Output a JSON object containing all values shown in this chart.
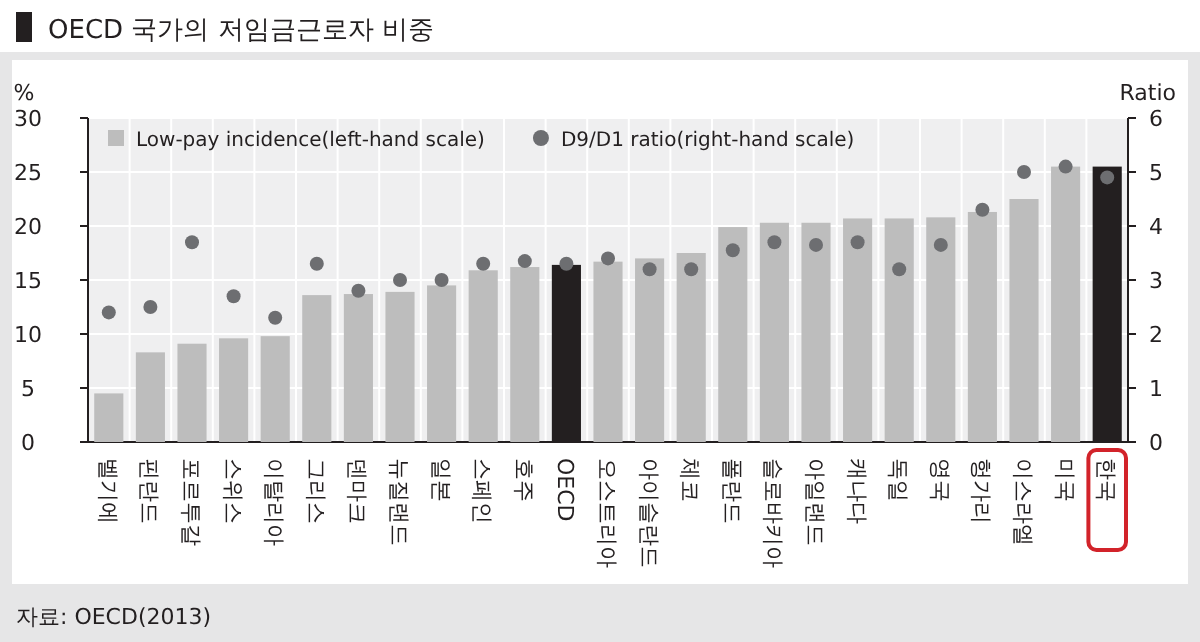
{
  "chart_data": {
    "type": "bar",
    "title": "OECD 국가의 저임금근로자 비중",
    "ylabel": "%",
    "y2label": "Ratio",
    "categories": [
      "벨기에",
      "핀란드",
      "포르투갈",
      "스위스",
      "이탈리아",
      "그리스",
      "덴마크",
      "뉴질랜드",
      "일본",
      "스페인",
      "호주",
      "OECD",
      "오스트리아",
      "아이슬란드",
      "체코",
      "폴란드",
      "슬로바키아",
      "아일랜드",
      "캐나다",
      "독일",
      "영국",
      "헝가리",
      "이스라엘",
      "미국",
      "한국"
    ],
    "series": [
      {
        "name": "Low-pay incidence(left-hand scale)",
        "color": "#bdbdbd",
        "colors": [
          "#bdbdbd",
          "#bdbdbd",
          "#bdbdbd",
          "#bdbdbd",
          "#bdbdbd",
          "#bdbdbd",
          "#bdbdbd",
          "#bdbdbd",
          "#bdbdbd",
          "#bdbdbd",
          "#bdbdbd",
          "#231f20",
          "#bdbdbd",
          "#bdbdbd",
          "#bdbdbd",
          "#bdbdbd",
          "#bdbdbd",
          "#bdbdbd",
          "#bdbdbd",
          "#bdbdbd",
          "#bdbdbd",
          "#bdbdbd",
          "#bdbdbd",
          "#bdbdbd",
          "#231f20"
        ],
        "values": [
          4.5,
          8.3,
          9.1,
          9.6,
          9.8,
          13.6,
          13.7,
          13.9,
          14.5,
          15.9,
          16.2,
          16.4,
          16.7,
          17.0,
          17.5,
          19.9,
          20.3,
          20.3,
          20.7,
          20.7,
          20.8,
          21.3,
          22.5,
          25.5,
          25.5
        ]
      },
      {
        "name": "D9/D1 ratio(right-hand scale)",
        "type": "scatter",
        "axis": "y2",
        "marker": "circle",
        "color": "#6d6e71",
        "values": [
          2.4,
          2.5,
          3.7,
          2.7,
          2.3,
          3.3,
          2.8,
          3.0,
          3.0,
          3.3,
          3.35,
          3.3,
          3.4,
          3.2,
          3.2,
          3.55,
          3.7,
          3.65,
          3.7,
          3.2,
          3.65,
          4.3,
          5.0,
          5.1,
          4.9
        ]
      }
    ],
    "ylim": [
      0,
      30
    ],
    "yticks": [
      0,
      5,
      10,
      15,
      20,
      25,
      30
    ],
    "y2lim": [
      0,
      6
    ],
    "y2ticks": [
      0,
      1,
      2,
      3,
      4,
      5,
      6
    ],
    "grid": true,
    "legend": "top left",
    "annotations": [
      "자료: OECD(2013)"
    ]
  }
}
